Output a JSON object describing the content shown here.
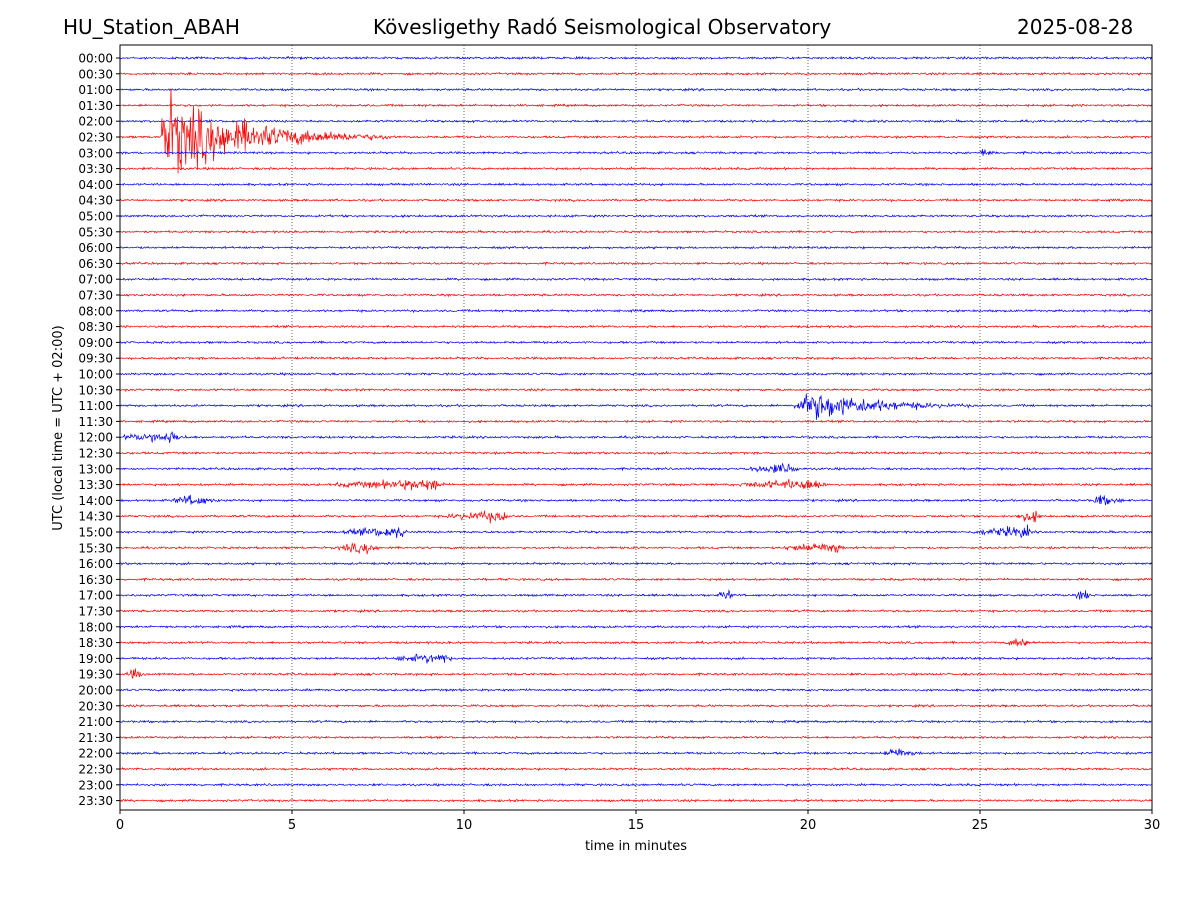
{
  "header": {
    "station": "HU_Station_ABAH",
    "observatory": "Kövesligethy Radó Seismological Observatory",
    "date": "2025-08-28"
  },
  "colors": {
    "even_row": "#0000ff",
    "odd_row": "#ff0000",
    "axes": "#000000",
    "grid": "#000000"
  },
  "chart_data": {
    "type": "line",
    "title": "",
    "xlabel": "time in minutes",
    "ylabel": "UTC (local time = UTC + 02:00)",
    "xlim": [
      0,
      30
    ],
    "x_ticks": [
      0,
      5,
      10,
      15,
      20,
      25,
      30
    ],
    "grid": "vertical dotted at x ticks",
    "row_labels": [
      "00:00",
      "00:30",
      "01:00",
      "01:30",
      "02:00",
      "02:30",
      "03:00",
      "03:30",
      "04:00",
      "04:30",
      "05:00",
      "05:30",
      "06:00",
      "06:30",
      "07:00",
      "07:30",
      "08:00",
      "08:30",
      "09:00",
      "09:30",
      "10:00",
      "10:30",
      "11:00",
      "11:30",
      "12:00",
      "12:30",
      "13:00",
      "13:30",
      "14:00",
      "14:30",
      "15:00",
      "15:30",
      "16:00",
      "16:30",
      "17:00",
      "17:30",
      "18:00",
      "18:30",
      "19:00",
      "19:30",
      "20:00",
      "20:30",
      "21:00",
      "21:30",
      "22:00",
      "22:30",
      "23:00",
      "23:30"
    ],
    "events": [
      {
        "row": "02:30",
        "start_min": 1.2,
        "peak_min": 1.25,
        "end_min": 8.0,
        "amplitude": "large",
        "color": "red"
      },
      {
        "row": "03:00",
        "start_min": 25.0,
        "peak_min": 25.1,
        "end_min": 25.8,
        "amplitude": "small",
        "color": "blue"
      },
      {
        "row": "11:00",
        "start_min": 19.6,
        "peak_min": 20.3,
        "end_min": 26.0,
        "amplitude": "medium",
        "color": "blue"
      },
      {
        "row": "12:00",
        "start_min": 0.1,
        "peak_min": 1.5,
        "end_min": 2.5,
        "amplitude": "small",
        "color": "blue"
      },
      {
        "row": "13:00",
        "start_min": 18.2,
        "peak_min": 19.6,
        "end_min": 19.9,
        "amplitude": "small",
        "color": "blue"
      },
      {
        "row": "13:30",
        "start_min": 6.3,
        "peak_min": 9.3,
        "end_min": 9.6,
        "amplitude": "small",
        "color": "red"
      },
      {
        "row": "13:30",
        "start_min": 18.0,
        "peak_min": 20.4,
        "end_min": 20.7,
        "amplitude": "small",
        "color": "red"
      },
      {
        "row": "14:00",
        "start_min": 1.5,
        "peak_min": 2.2,
        "end_min": 3.5,
        "amplitude": "small",
        "color": "blue"
      },
      {
        "row": "14:00",
        "start_min": 28.3,
        "peak_min": 28.5,
        "end_min": 30.0,
        "amplitude": "small",
        "color": "blue"
      },
      {
        "row": "14:30",
        "start_min": 9.5,
        "peak_min": 11.2,
        "end_min": 11.5,
        "amplitude": "small",
        "color": "red"
      },
      {
        "row": "14:30",
        "start_min": 26.0,
        "peak_min": 26.6,
        "end_min": 27.0,
        "amplitude": "small",
        "color": "red"
      },
      {
        "row": "15:00",
        "start_min": 6.5,
        "peak_min": 8.2,
        "end_min": 8.6,
        "amplitude": "small",
        "color": "blue"
      },
      {
        "row": "15:00",
        "start_min": 24.8,
        "peak_min": 26.4,
        "end_min": 26.6,
        "amplitude": "small",
        "color": "blue"
      },
      {
        "row": "15:30",
        "start_min": 6.3,
        "peak_min": 7.2,
        "end_min": 8.0,
        "amplitude": "small",
        "color": "red"
      },
      {
        "row": "15:30",
        "start_min": 19.3,
        "peak_min": 20.9,
        "end_min": 21.2,
        "amplitude": "small",
        "color": "red"
      },
      {
        "row": "17:00",
        "start_min": 17.4,
        "peak_min": 17.7,
        "end_min": 18.0,
        "amplitude": "small",
        "color": "blue"
      },
      {
        "row": "17:00",
        "start_min": 27.8,
        "peak_min": 28.1,
        "end_min": 28.4,
        "amplitude": "small",
        "color": "blue"
      },
      {
        "row": "18:30",
        "start_min": 25.8,
        "peak_min": 26.3,
        "end_min": 26.6,
        "amplitude": "small",
        "color": "red"
      },
      {
        "row": "19:00",
        "start_min": 8.0,
        "peak_min": 9.5,
        "end_min": 9.8,
        "amplitude": "small",
        "color": "blue"
      },
      {
        "row": "19:30",
        "start_min": 0.2,
        "peak_min": 0.5,
        "end_min": 0.9,
        "amplitude": "small",
        "color": "red"
      },
      {
        "row": "22:00",
        "start_min": 22.2,
        "peak_min": 22.6,
        "end_min": 24.0,
        "amplitude": "small",
        "color": "blue"
      }
    ]
  }
}
